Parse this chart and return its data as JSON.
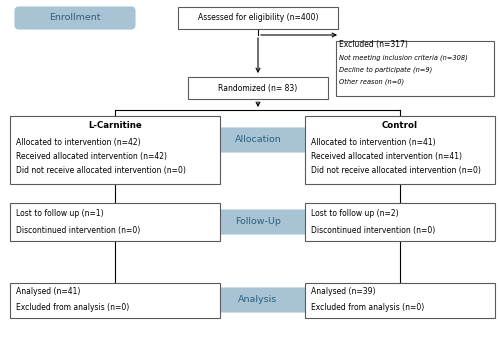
{
  "bg_color": "#ffffff",
  "border_color": "#5a5a5a",
  "box_fill": "#ffffff",
  "blue_fill": "#a8c4d4",
  "blue_text": "#2c6080",
  "label_color": "#000000",
  "enrollment_label": "Enrollment",
  "allocation_label": "Allocation",
  "followup_label": "Follow-Up",
  "analysis_label": "Analysis",
  "eligibility_text": "Assessed for eligibility (n=400)",
  "excluded_title": "Excluded (n=317)",
  "excluded_line1": "Not meeting inclusion criteria (n=308)",
  "excluded_line2": "Decline to participate (n=9)",
  "excluded_line3": "Other reason (n=0)",
  "randomized_text": "Randomized (n= 83)",
  "lc_title": "L-Carnitine",
  "lc_line1": "Allocated to intervention (n=42)",
  "lc_line2": "Received allocated intervention (n=42)",
  "lc_line3": "Did not receive allocated intervention (n=0)",
  "ctrl_title": "Control",
  "ctrl_line1": "Allocated to intervention (n=41)",
  "ctrl_line2": "Received allocated intervention (n=41)",
  "ctrl_line3": "Did not receive allocated intervention (n=0)",
  "lc_fu_line1": "Lost to follow up (n=1)",
  "lc_fu_line2": "Discontinued intervention (n=0)",
  "ctrl_fu_line1": "Lost to follow up (n=2)",
  "ctrl_fu_line2": "Discontinued intervention (n=0)",
  "lc_an_line1": "Analysed (n=41)",
  "lc_an_line2": "Excluded from analysis (n=0)",
  "ctrl_an_line1": "Analysed (n=39)",
  "ctrl_an_line2": "Excluded from analysis (n=0)"
}
